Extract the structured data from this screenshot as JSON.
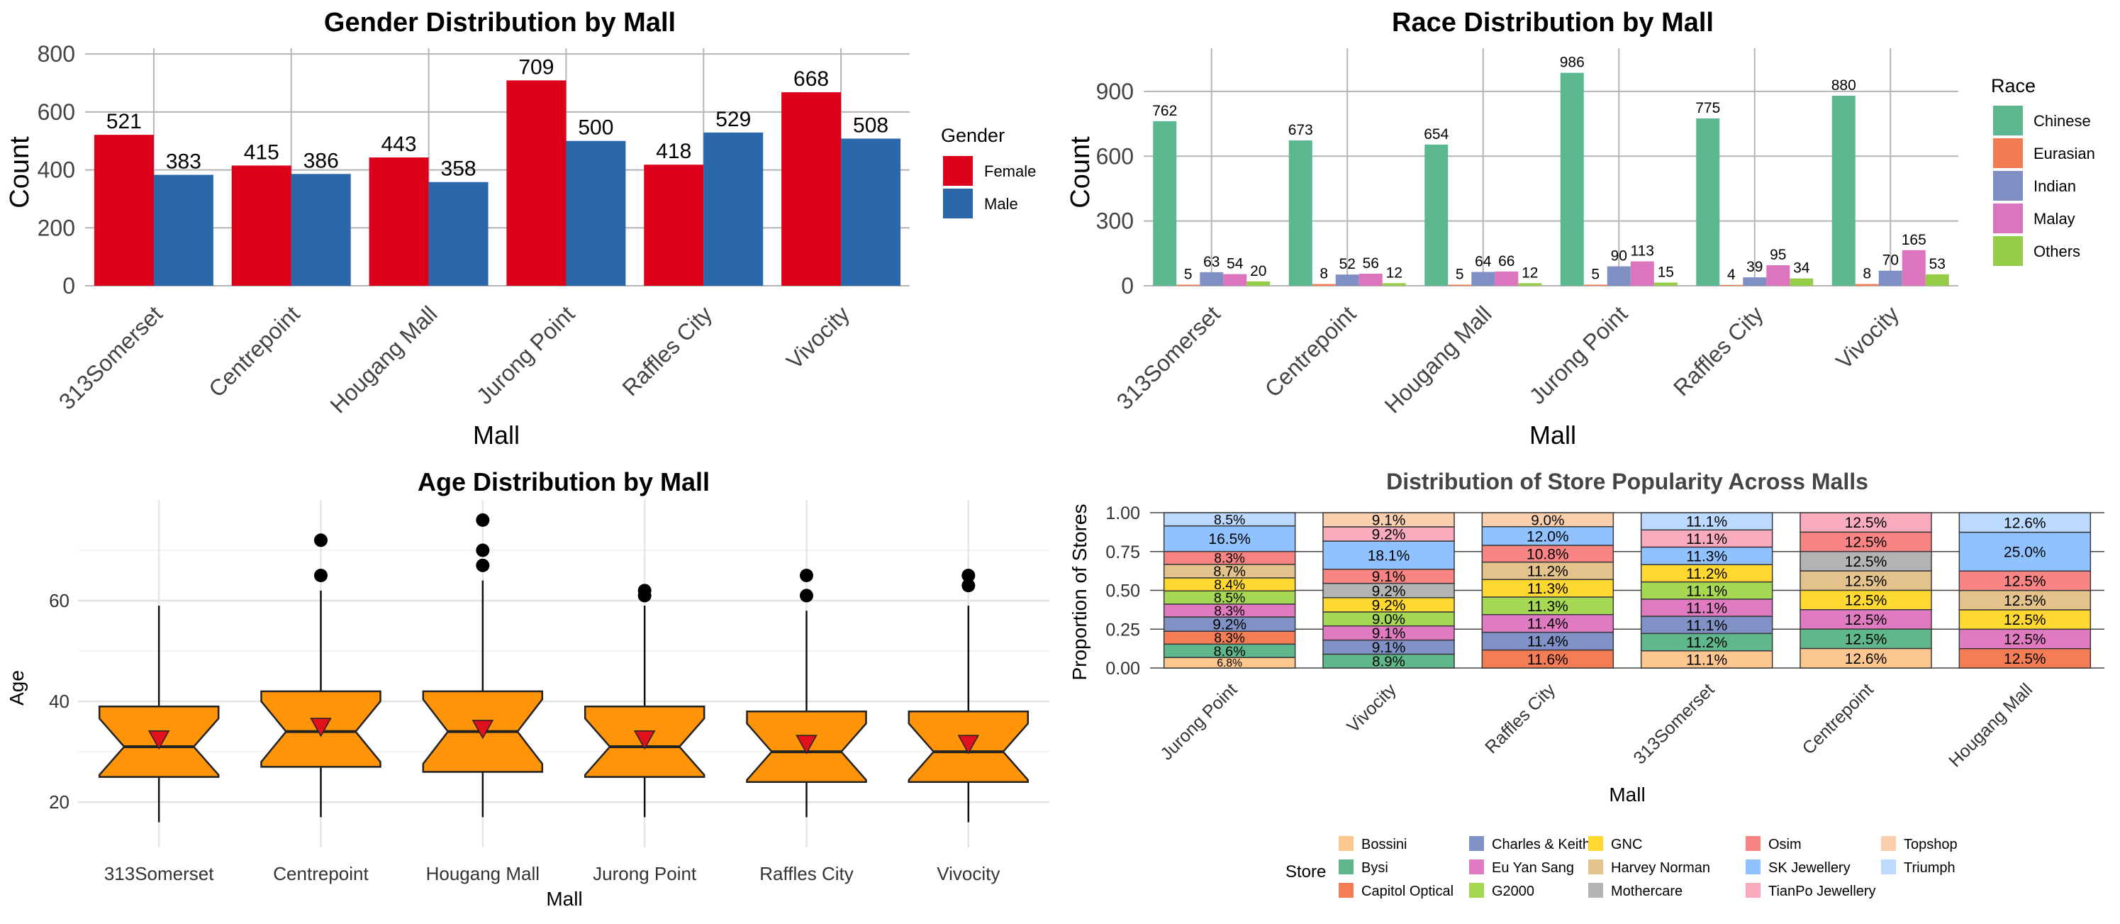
{
  "chart_data": [
    {
      "type": "bar",
      "title": "Gender Distribution by Mall",
      "xlabel": "Mall",
      "ylabel": "Count",
      "categories": [
        "313Somerset",
        "Centrepoint",
        "Hougang Mall",
        "Jurong Point",
        "Raffles City",
        "Vivocity"
      ],
      "ylim": [
        0,
        820
      ],
      "yticks": [
        0,
        200,
        400,
        600,
        800
      ],
      "legend_title": "Gender",
      "legend_position": "right",
      "grid": true,
      "series": [
        {
          "name": "Female",
          "color": "#dd001b",
          "values": [
            521,
            415,
            443,
            709,
            418,
            668
          ]
        },
        {
          "name": "Male",
          "color": "#2b68aa",
          "values": [
            383,
            386,
            358,
            500,
            529,
            508
          ]
        }
      ]
    },
    {
      "type": "bar",
      "title": "Race Distribution by Mall",
      "xlabel": "Mall",
      "ylabel": "Count",
      "categories": [
        "313Somerset",
        "Centrepoint",
        "Hougang Mall",
        "Jurong Point",
        "Raffles City",
        "Vivocity"
      ],
      "ylim": [
        0,
        1100
      ],
      "yticks": [
        0,
        300,
        600,
        900
      ],
      "legend_title": "Race",
      "legend_position": "right",
      "grid": true,
      "series": [
        {
          "name": "Chinese",
          "color": "#5ab78f",
          "values": [
            762,
            673,
            654,
            986,
            775,
            880
          ]
        },
        {
          "name": "Eurasian",
          "color": "#f27b52",
          "values": [
            5,
            8,
            5,
            5,
            4,
            8
          ]
        },
        {
          "name": "Indian",
          "color": "#7f8fc4",
          "values": [
            63,
            52,
            64,
            90,
            39,
            70
          ]
        },
        {
          "name": "Malay",
          "color": "#dd74be",
          "values": [
            54,
            56,
            66,
            113,
            95,
            165
          ]
        },
        {
          "name": "Others",
          "color": "#95cd48",
          "values": [
            20,
            12,
            12,
            15,
            34,
            53
          ]
        }
      ]
    },
    {
      "type": "box",
      "title": "Age Distribution by Mall",
      "xlabel": "Mall",
      "ylabel": "Age",
      "categories": [
        "313Somerset",
        "Centrepoint",
        "Hougang Mall",
        "Jurong Point",
        "Raffles City",
        "Vivocity"
      ],
      "ylim": [
        11,
        80
      ],
      "yticks": [
        20,
        40,
        60
      ],
      "box_color": "#ff9408",
      "mean_marker_color": "#e0101d",
      "grid": true,
      "boxes": [
        {
          "min": 16,
          "q1": 25,
          "median": 31,
          "q3": 39,
          "max": 59,
          "mean": 32.3,
          "outliers": []
        },
        {
          "min": 17,
          "q1": 27,
          "median": 34,
          "q3": 42,
          "max": 62,
          "mean": 34.8,
          "outliers": [
            65,
            72
          ]
        },
        {
          "min": 17,
          "q1": 26,
          "median": 34,
          "q3": 42,
          "max": 64,
          "mean": 34.4,
          "outliers": [
            67,
            70,
            76
          ]
        },
        {
          "min": 17,
          "q1": 25,
          "median": 31,
          "q3": 39,
          "max": 59,
          "mean": 32.3,
          "outliers": [
            61,
            62
          ]
        },
        {
          "min": 17,
          "q1": 24,
          "median": 30,
          "q3": 38,
          "max": 58,
          "mean": 31.4,
          "outliers": [
            61,
            65
          ]
        },
        {
          "min": 16,
          "q1": 24,
          "median": 30,
          "q3": 38,
          "max": 59,
          "mean": 31.4,
          "outliers": [
            63,
            65
          ]
        }
      ]
    },
    {
      "type": "bar",
      "stacked": true,
      "title": "Distribution of Store Popularity Across Malls",
      "xlabel": "Mall",
      "ylabel": "Proportion of Stores",
      "categories": [
        "Jurong Point",
        "Vivocity",
        "Raffles City",
        "313Somerset",
        "Centrepoint",
        "Hougang Mall"
      ],
      "ylim": [
        0,
        1
      ],
      "yticks": [
        "0.00",
        "0.25",
        "0.50",
        "0.75",
        "1.00"
      ],
      "legend_title": "Store",
      "legend_position": "bottom",
      "stores": [
        {
          "name": "Bossini",
          "color": "#fcc68f"
        },
        {
          "name": "Bysi",
          "color": "#5fb88b"
        },
        {
          "name": "Capitol Optical",
          "color": "#f57d56"
        },
        {
          "name": "Charles & Keith",
          "color": "#8091c6"
        },
        {
          "name": "Eu Yan Sang",
          "color": "#e07bc2"
        },
        {
          "name": "G2000",
          "color": "#a6d854"
        },
        {
          "name": "GNC",
          "color": "#ffd92f"
        },
        {
          "name": "Harvey Norman",
          "color": "#e4c28c"
        },
        {
          "name": "Mothercare",
          "color": "#b3b3b3"
        },
        {
          "name": "Osim",
          "color": "#f98484"
        },
        {
          "name": "SK Jewellery",
          "color": "#8fc2ff"
        },
        {
          "name": "TianPo Jewellery",
          "color": "#f9abbe"
        },
        {
          "name": "Topshop",
          "color": "#f9cfad"
        },
        {
          "name": "Triumph",
          "color": "#bcd9ff"
        }
      ],
      "stacks": [
        [
          {
            "store": "Bossini",
            "value": 6.8,
            "label": "6.8%"
          },
          {
            "store": "Bysi",
            "value": 8.6,
            "label": "8.6%"
          },
          {
            "store": "Capitol Optical",
            "value": 8.3,
            "label": "8.3%"
          },
          {
            "store": "Charles & Keith",
            "value": 9.2,
            "label": "9.2%"
          },
          {
            "store": "Eu Yan Sang",
            "value": 8.3,
            "label": "8.3%"
          },
          {
            "store": "G2000",
            "value": 8.5,
            "label": "8.5%"
          },
          {
            "store": "GNC",
            "value": 8.4,
            "label": "8.4%"
          },
          {
            "store": "Harvey Norman",
            "value": 8.7,
            "label": "8.7%"
          },
          {
            "store": "Osim",
            "value": 8.3,
            "label": "8.3%"
          },
          {
            "store": "SK Jewellery",
            "value": 16.5,
            "label": "16.5%"
          },
          {
            "store": "Triumph",
            "value": 8.5,
            "label": "8.5%"
          }
        ],
        [
          {
            "store": "Bysi",
            "value": 8.9,
            "label": "8.9%"
          },
          {
            "store": "Charles & Keith",
            "value": 9.1,
            "label": "9.1%"
          },
          {
            "store": "Eu Yan Sang",
            "value": 9.1,
            "label": "9.1%"
          },
          {
            "store": "G2000",
            "value": 9.0,
            "label": "9.0%"
          },
          {
            "store": "GNC",
            "value": 9.2,
            "label": "9.2%"
          },
          {
            "store": "Mothercare",
            "value": 9.2,
            "label": "9.2%"
          },
          {
            "store": "Osim",
            "value": 9.1,
            "label": "9.1%"
          },
          {
            "store": "SK Jewellery",
            "value": 18.1,
            "label": "18.1%"
          },
          {
            "store": "TianPo Jewellery",
            "value": 9.2,
            "label": "9.2%"
          },
          {
            "store": "Topshop",
            "value": 9.1,
            "label": "9.1%"
          }
        ],
        [
          {
            "store": "Capitol Optical",
            "value": 11.6,
            "label": "11.6%"
          },
          {
            "store": "Charles & Keith",
            "value": 11.4,
            "label": "11.4%"
          },
          {
            "store": "Eu Yan Sang",
            "value": 11.4,
            "label": "11.4%"
          },
          {
            "store": "G2000",
            "value": 11.3,
            "label": "11.3%"
          },
          {
            "store": "GNC",
            "value": 11.3,
            "label": "11.3%"
          },
          {
            "store": "Harvey Norman",
            "value": 11.2,
            "label": "11.2%"
          },
          {
            "store": "Osim",
            "value": 10.8,
            "label": "10.8%"
          },
          {
            "store": "SK Jewellery",
            "value": 12.0,
            "label": "12.0%"
          },
          {
            "store": "Topshop",
            "value": 9.0,
            "label": "9.0%"
          }
        ],
        [
          {
            "store": "Bossini",
            "value": 11.1,
            "label": "11.1%"
          },
          {
            "store": "Bysi",
            "value": 11.2,
            "label": "11.2%"
          },
          {
            "store": "Charles & Keith",
            "value": 11.1,
            "label": "11.1%"
          },
          {
            "store": "Eu Yan Sang",
            "value": 11.1,
            "label": "11.1%"
          },
          {
            "store": "G2000",
            "value": 11.1,
            "label": "11.1%"
          },
          {
            "store": "GNC",
            "value": 11.2,
            "label": "11.2%"
          },
          {
            "store": "SK Jewellery",
            "value": 11.3,
            "label": "11.3%"
          },
          {
            "store": "TianPo Jewellery",
            "value": 11.1,
            "label": "11.1%"
          },
          {
            "store": "Triumph",
            "value": 11.1,
            "label": "11.1%"
          }
        ],
        [
          {
            "store": "Bossini",
            "value": 12.6,
            "label": "12.6%"
          },
          {
            "store": "Bysi",
            "value": 12.5,
            "label": "12.5%"
          },
          {
            "store": "Eu Yan Sang",
            "value": 12.5,
            "label": "12.5%"
          },
          {
            "store": "GNC",
            "value": 12.5,
            "label": "12.5%"
          },
          {
            "store": "Harvey Norman",
            "value": 12.5,
            "label": "12.5%"
          },
          {
            "store": "Mothercare",
            "value": 12.5,
            "label": "12.5%"
          },
          {
            "store": "Osim",
            "value": 12.5,
            "label": "12.5%"
          },
          {
            "store": "TianPo Jewellery",
            "value": 12.5,
            "label": "12.5%"
          }
        ],
        [
          {
            "store": "Capitol Optical",
            "value": 12.5,
            "label": "12.5%"
          },
          {
            "store": "Eu Yan Sang",
            "value": 12.5,
            "label": "12.5%"
          },
          {
            "store": "GNC",
            "value": 12.5,
            "label": "12.5%"
          },
          {
            "store": "Harvey Norman",
            "value": 12.5,
            "label": "12.5%"
          },
          {
            "store": "Osim",
            "value": 12.5,
            "label": "12.5%"
          },
          {
            "store": "SK Jewellery",
            "value": 25.0,
            "label": "25.0%"
          },
          {
            "store": "Triumph",
            "value": 12.6,
            "label": "12.6%"
          }
        ]
      ]
    }
  ]
}
